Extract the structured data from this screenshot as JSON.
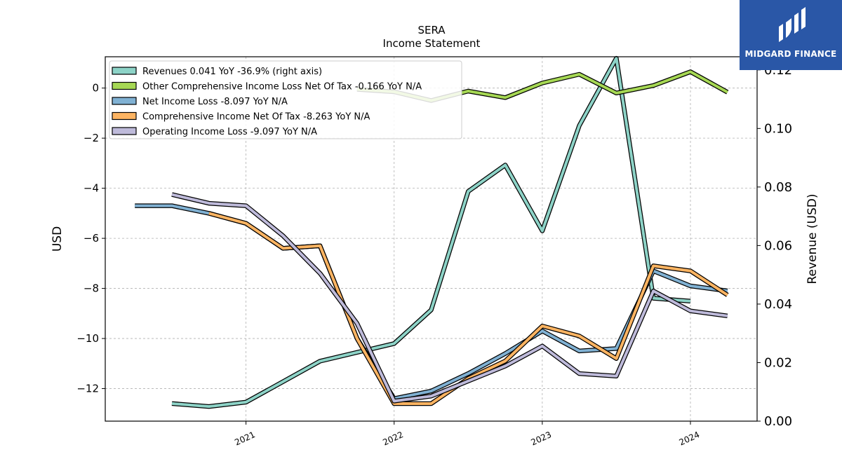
{
  "chart_data": {
    "type": "line",
    "title": "SERA",
    "subtitle": "Income Statement",
    "ylabel_left": "USD",
    "ylabel_right": "Revenue (USD)",
    "ylim_left": [
      -13.3,
      1.25
    ],
    "ylim_right": [
      0.0,
      0.1245
    ],
    "xlim": [
      2020.05,
      2024.45
    ],
    "yticks_left": [
      0,
      -2,
      -4,
      -6,
      -8,
      -10,
      -12
    ],
    "ytick_labels_left": [
      "0",
      "−2",
      "−4",
      "−6",
      "−8",
      "−10",
      "−12"
    ],
    "yticks_right": [
      0.12,
      0.1,
      0.08,
      0.06,
      0.04,
      0.02,
      0.0
    ],
    "ytick_labels_right": [
      "0.12",
      "0.10",
      "0.08",
      "0.06",
      "0.04",
      "0.02",
      "0.00"
    ],
    "xticks": [
      2021,
      2022,
      2023,
      2024
    ],
    "xtick_labels": [
      "2021",
      "2022",
      "2023",
      "2024"
    ],
    "grid": true,
    "legend_position": "top-left",
    "series": [
      {
        "name": "Revenues  0.041 YoY -36.9% (right axis)",
        "axis": "right",
        "color": "#8dd3c7",
        "x": [
          2020.5,
          2020.75,
          2021.0,
          2021.5,
          2022.0,
          2022.25,
          2022.5,
          2022.75,
          2023.0,
          2023.25,
          2023.5,
          2023.75,
          2024.0
        ],
        "y": [
          0.006,
          0.005,
          0.0065,
          0.0205,
          0.0265,
          0.038,
          0.0785,
          0.0875,
          0.065,
          0.101,
          0.124,
          0.042,
          0.041
        ]
      },
      {
        "name": "Other Comprehensive Income Loss Net Of Tax  -0.166 YoY N/A",
        "axis": "left",
        "color": "#a6d854",
        "x": [
          2021.75,
          2022.0,
          2022.25,
          2022.5,
          2022.75,
          2023.0,
          2023.25,
          2023.5,
          2023.75,
          2024.0,
          2024.25
        ],
        "y": [
          -0.05,
          -0.15,
          -0.5,
          -0.12,
          -0.38,
          0.2,
          0.55,
          -0.2,
          0.1,
          0.65,
          -0.166
        ]
      },
      {
        "name": "Net Income Loss  -8.097 YoY N/A",
        "axis": "left",
        "color": "#80b1d3",
        "x": [
          2020.25,
          2020.5,
          2020.75,
          2021.0,
          2021.25,
          2021.5,
          2021.75,
          2022.0,
          2022.25,
          2022.5,
          2022.75,
          2023.0,
          2023.25,
          2023.5,
          2023.75,
          2024.0,
          2024.25
        ],
        "y": [
          -4.7,
          -4.7,
          -5.0,
          -5.4,
          -6.4,
          -6.3,
          -10.0,
          -12.4,
          -12.1,
          -11.4,
          -10.6,
          -9.7,
          -10.5,
          -10.4,
          -7.3,
          -7.9,
          -8.097
        ]
      },
      {
        "name": "Comprehensive Income Net Of Tax  -8.263 YoY N/A",
        "axis": "left",
        "color": "#fdb462",
        "x": [
          2020.75,
          2021.0,
          2021.25,
          2021.5,
          2021.75,
          2022.0,
          2022.25,
          2022.5,
          2022.75,
          2023.0,
          2023.25,
          2023.5,
          2023.75,
          2024.0,
          2024.25
        ],
        "y": [
          -5.0,
          -5.4,
          -6.4,
          -6.3,
          -10.0,
          -12.6,
          -12.6,
          -11.6,
          -10.9,
          -9.5,
          -9.9,
          -10.8,
          -7.1,
          -7.3,
          -8.263
        ]
      },
      {
        "name": "Operating Income Loss  -9.097 YoY N/A",
        "axis": "left",
        "color": "#bebada",
        "x": [
          2020.5,
          2020.75,
          2021.0,
          2021.25,
          2021.5,
          2021.75,
          2022.0,
          2022.25,
          2022.5,
          2022.75,
          2023.0,
          2023.25,
          2023.5,
          2023.75,
          2024.0,
          2024.25
        ],
        "y": [
          -4.25,
          -4.6,
          -4.7,
          -5.9,
          -7.4,
          -9.4,
          -12.5,
          -12.3,
          -11.7,
          -11.1,
          -10.3,
          -11.4,
          -11.5,
          -8.1,
          -8.9,
          -9.097
        ]
      }
    ]
  },
  "logo": {
    "text": "MIDGARD FINANCE",
    "color": "#2a57a7"
  }
}
